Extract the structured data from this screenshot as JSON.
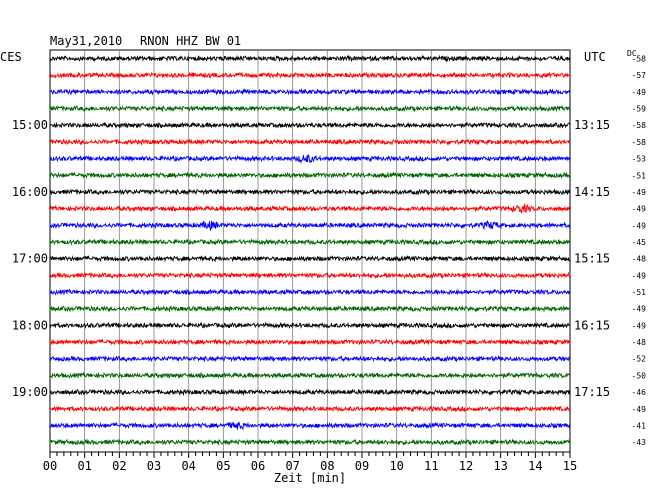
{
  "header": {
    "date": "May31,2010",
    "station": "RNON HHZ BW 01",
    "left_tz": "CES",
    "right_tz": "UTC",
    "dc_label": "DC"
  },
  "chart_data": {
    "type": "line",
    "title": "May31,2010   RNON HHZ BW 01",
    "xlabel": "Zeit [min]",
    "xlim": [
      0,
      15
    ],
    "x_ticks": [
      "00",
      "01",
      "02",
      "03",
      "04",
      "05",
      "06",
      "07",
      "08",
      "09",
      "10",
      "11",
      "12",
      "13",
      "14",
      "15"
    ],
    "grid": true,
    "left_hour_labels": [
      "15:00",
      "16:00",
      "17:00",
      "18:00",
      "19:00"
    ],
    "right_hour_labels": [
      "13:15",
      "14:15",
      "15:15",
      "16:15",
      "17:15"
    ],
    "trace_colors": [
      "#000000",
      "#ff0000",
      "#0000ff",
      "#006400"
    ],
    "dc_offsets": [
      "-58",
      "-57",
      "-49",
      "-59",
      "-58",
      "-58",
      "-53",
      "-51",
      "-49",
      "-49",
      "-49",
      "-45",
      "-48",
      "-49",
      "-51",
      "-49",
      "-49",
      "-48",
      "-52",
      "-50",
      "-46",
      "-49",
      "-41",
      "-43"
    ],
    "events": [
      {
        "trace": 6,
        "minute": 7.4,
        "amplitude": 3
      },
      {
        "trace": 9,
        "minute": 13.6,
        "amplitude": 3
      },
      {
        "trace": 10,
        "minute": 4.6,
        "amplitude": 3
      },
      {
        "trace": 10,
        "minute": 12.7,
        "amplitude": 2.6
      },
      {
        "trace": 22,
        "minute": 5.4,
        "amplitude": 2.4
      }
    ]
  }
}
